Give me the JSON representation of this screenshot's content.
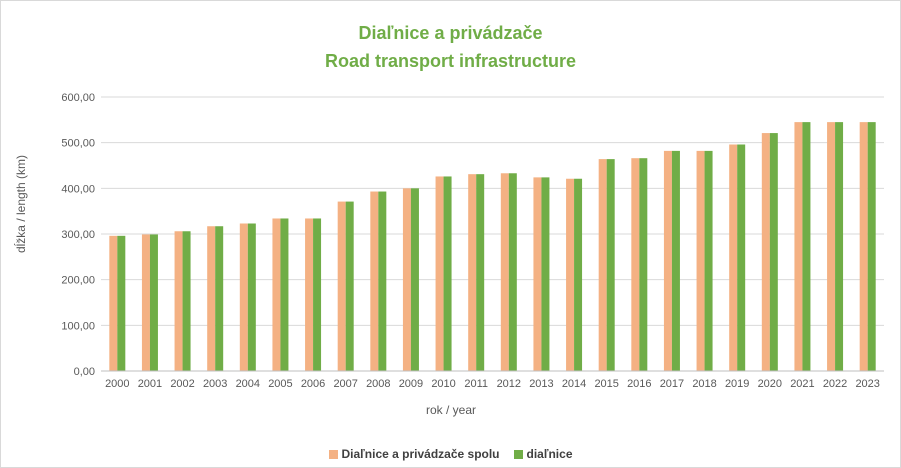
{
  "chart_data": {
    "type": "bar",
    "title": "Diaľnice a privádzače",
    "subtitle": "Road transport infrastructure",
    "xlabel": "rok / year",
    "ylabel": "dĺžka / length (km)",
    "ylim": [
      0,
      600
    ],
    "y_ticks": [
      "0,00",
      "100,00",
      "200,00",
      "300,00",
      "400,00",
      "500,00",
      "600,00"
    ],
    "grid": true,
    "legend_position": "bottom",
    "categories": [
      "2000",
      "2001",
      "2002",
      "2003",
      "2004",
      "2005",
      "2006",
      "2007",
      "2008",
      "2009",
      "2010",
      "2011",
      "2012",
      "2013",
      "2014",
      "2015",
      "2016",
      "2017",
      "2018",
      "2019",
      "2020",
      "2021",
      "2022",
      "2023"
    ],
    "series": [
      {
        "name": "Diaľnice a privádzače spolu",
        "color": "#f4b183",
        "values": [
          296,
          299,
          306,
          317,
          323,
          334,
          334,
          371,
          393,
          400,
          426,
          431,
          433,
          424,
          421,
          464,
          466,
          482,
          482,
          496,
          521,
          545,
          545,
          545
        ]
      },
      {
        "name": "diaľnice",
        "color": "#70ad47",
        "values": [
          296,
          299,
          306,
          317,
          323,
          334,
          334,
          371,
          393,
          400,
          426,
          431,
          433,
          424,
          421,
          464,
          466,
          482,
          482,
          496,
          521,
          545,
          545,
          545
        ]
      }
    ]
  }
}
